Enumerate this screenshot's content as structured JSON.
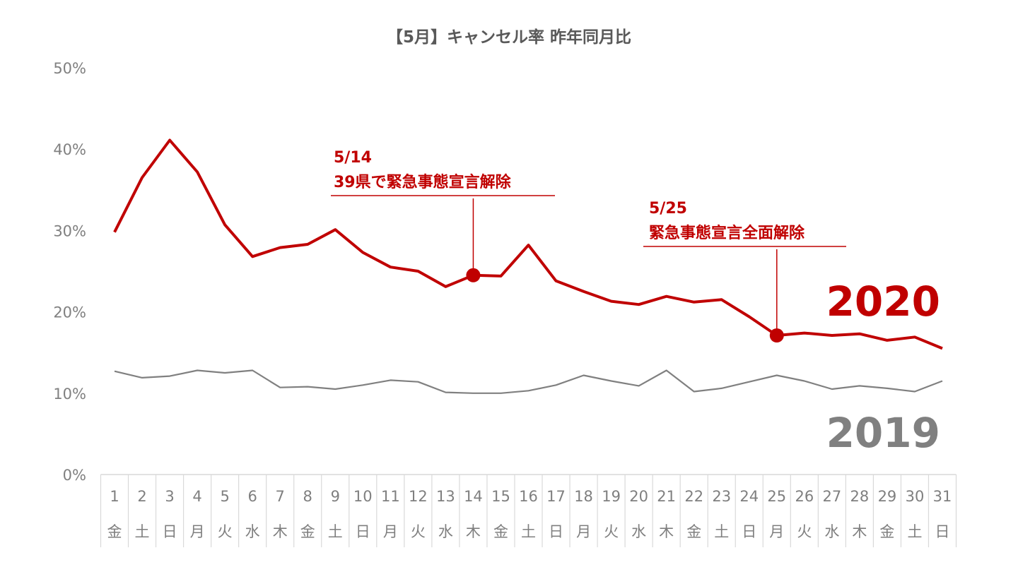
{
  "chart_data": {
    "type": "line",
    "title": "【5月】キャンセル率 昨年同月比",
    "xlabel": "",
    "ylabel": "",
    "ylim": [
      0,
      50
    ],
    "yticks": [
      "0%",
      "10%",
      "20%",
      "30%",
      "40%",
      "50%"
    ],
    "grid": false,
    "categories": [
      "1",
      "2",
      "3",
      "4",
      "5",
      "6",
      "7",
      "8",
      "9",
      "10",
      "11",
      "12",
      "13",
      "14",
      "15",
      "16",
      "17",
      "18",
      "19",
      "20",
      "21",
      "22",
      "23",
      "24",
      "25",
      "26",
      "27",
      "28",
      "29",
      "30",
      "31"
    ],
    "weekdays": [
      "金",
      "土",
      "日",
      "月",
      "火",
      "水",
      "木",
      "金",
      "土",
      "日",
      "月",
      "火",
      "水",
      "木",
      "金",
      "土",
      "日",
      "月",
      "火",
      "水",
      "木",
      "金",
      "土",
      "日",
      "月",
      "火",
      "水",
      "木",
      "金",
      "土",
      "日"
    ],
    "series": [
      {
        "name": "2020",
        "color": "#c00000",
        "values": [
          29.8,
          36.5,
          41.1,
          37.2,
          30.7,
          26.8,
          27.9,
          28.3,
          30.1,
          27.3,
          25.5,
          25.0,
          23.1,
          24.5,
          24.4,
          28.2,
          23.8,
          22.5,
          21.3,
          20.9,
          21.9,
          21.2,
          21.5,
          19.4,
          17.1,
          17.4,
          17.1,
          17.3,
          16.5,
          16.9,
          15.5
        ]
      },
      {
        "name": "2019",
        "color": "#808080",
        "values": [
          12.7,
          11.9,
          12.1,
          12.8,
          12.5,
          12.8,
          10.7,
          10.8,
          10.5,
          11.0,
          11.6,
          11.4,
          10.1,
          10.0,
          10.0,
          10.3,
          11.0,
          12.2,
          11.5,
          10.9,
          12.8,
          10.2,
          10.6,
          11.4,
          12.2,
          11.5,
          10.5,
          10.9,
          10.6,
          10.2,
          11.5
        ]
      }
    ],
    "annotations": [
      {
        "day": 14,
        "series": "2020",
        "lines": [
          "5/14",
          "39県で緊急事態宣言解除"
        ]
      },
      {
        "day": 25,
        "series": "2020",
        "lines": [
          "5/25",
          "緊急事態宣言全面解除"
        ]
      }
    ]
  }
}
